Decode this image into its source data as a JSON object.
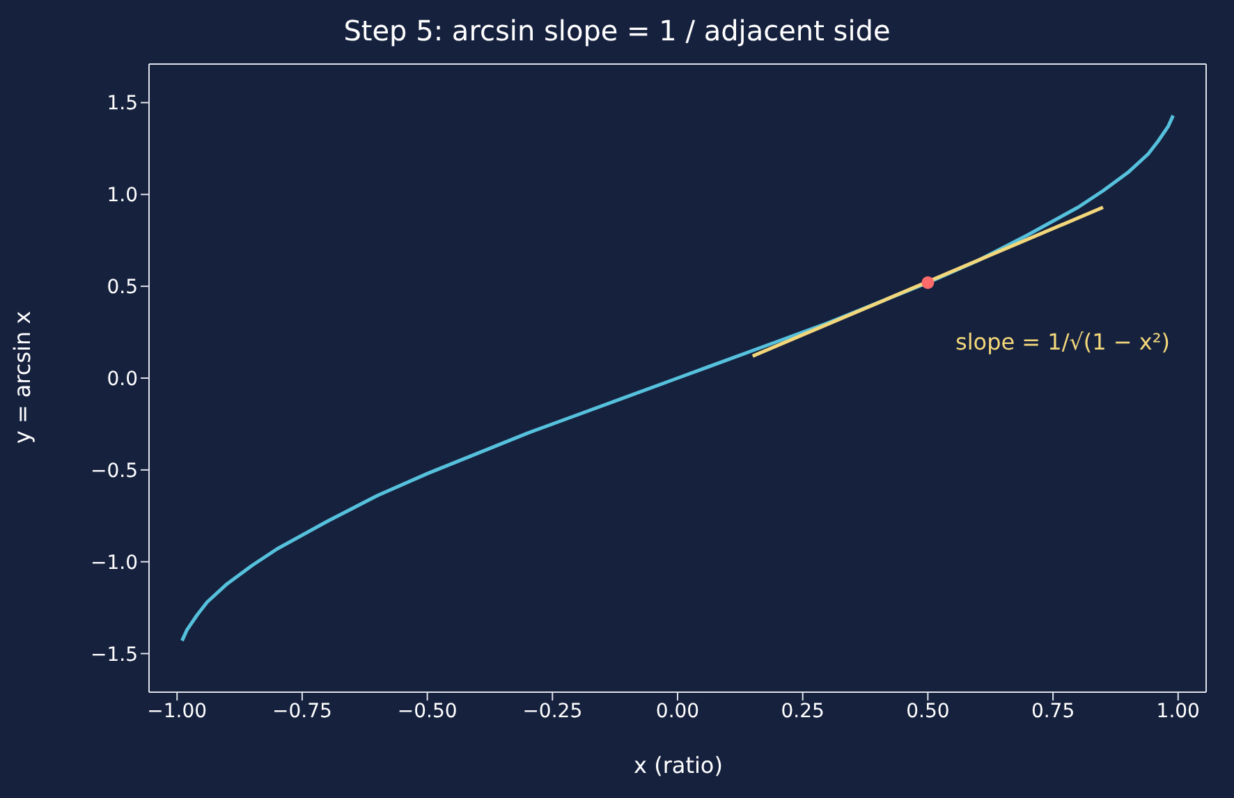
{
  "chart_data": {
    "type": "line",
    "title": "Step 5: arcsin slope = 1 / adjacent side",
    "xlabel": "x (ratio)",
    "ylabel": "y = arcsin x",
    "xlim": [
      -1.056,
      1.056
    ],
    "xticks": [
      {
        "value": -1,
        "label": "−1.00"
      },
      {
        "value": -0.75,
        "label": "−0.75"
      },
      {
        "value": -0.5,
        "label": "−0.50"
      },
      {
        "value": -0.25,
        "label": "−0.25"
      },
      {
        "value": 0,
        "label": "0.00"
      },
      {
        "value": 0.25,
        "label": "0.25"
      },
      {
        "value": 0.5,
        "label": "0.50"
      },
      {
        "value": 0.75,
        "label": "0.75"
      },
      {
        "value": 1,
        "label": "1.00"
      }
    ],
    "ylim": [
      -1.71,
      1.71
    ],
    "yticks": [
      {
        "value": -1.5,
        "label": "−1.5"
      },
      {
        "value": -1,
        "label": "−1.0"
      },
      {
        "value": -0.5,
        "label": "−0.5"
      },
      {
        "value": 0,
        "label": "0.0"
      },
      {
        "value": 0.5,
        "label": "0.5"
      },
      {
        "value": 1,
        "label": "1.0"
      },
      {
        "value": 1.5,
        "label": "1.5"
      }
    ],
    "line_style": "solid",
    "series": [
      {
        "color": "#56c1dc",
        "marker": "none",
        "x": [
          -0.99,
          -0.98,
          -0.96,
          -0.94,
          -0.9,
          -0.85,
          -0.8,
          -0.7,
          -0.6,
          -0.5,
          -0.4,
          -0.3,
          -0.2,
          -0.1,
          0,
          0.1,
          0.2,
          0.3,
          0.4,
          0.5,
          0.6,
          0.7,
          0.8,
          0.85,
          0.9,
          0.94,
          0.96,
          0.98,
          0.99
        ],
        "values": [
          -1.43,
          -1.37,
          -1.29,
          -1.22,
          -1.12,
          -1.02,
          -0.93,
          -0.78,
          -0.64,
          -0.52,
          -0.41,
          -0.3,
          -0.2,
          -0.1,
          0,
          0.1,
          0.2,
          0.3,
          0.41,
          0.52,
          0.64,
          0.78,
          0.93,
          1.02,
          1.12,
          1.22,
          1.29,
          1.37,
          1.43
        ]
      },
      {
        "color": "#f3d77a",
        "marker": "none",
        "x": [
          0.15,
          0.85
        ],
        "values": [
          0.12,
          0.93
        ]
      },
      {
        "type": "scatter",
        "color": "#ff6b6b",
        "marker": "circle",
        "x": [
          0.5
        ],
        "values": [
          0.52
        ]
      }
    ],
    "annotations": [
      "slope = 1/√(1 − x²)"
    ]
  }
}
